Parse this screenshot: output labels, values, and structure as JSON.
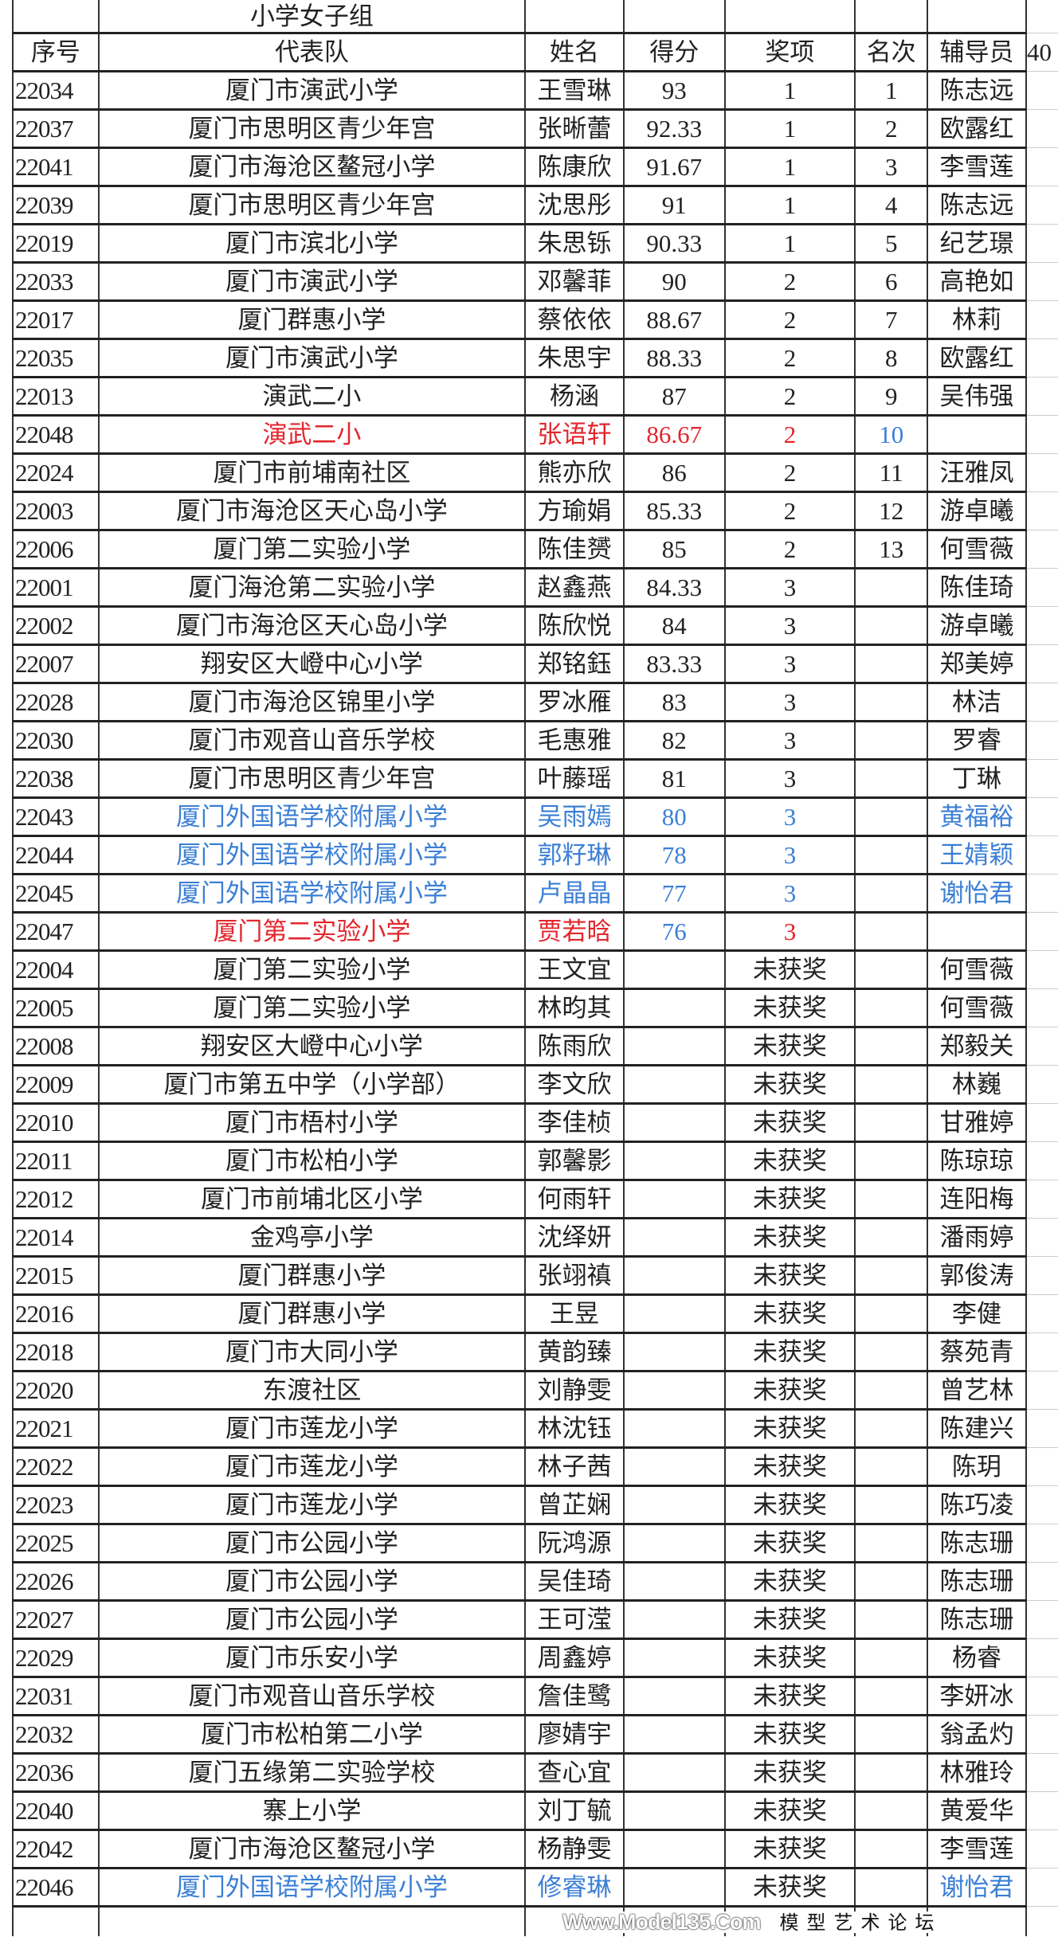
{
  "title": "小学女子组",
  "headers": [
    "序号",
    "代表队",
    "姓名",
    "得分",
    "奖项",
    "名次",
    "辅导员"
  ],
  "extra_header": "40",
  "colors": {
    "red": "#e2262d",
    "blue": "#3b7fd6"
  },
  "rows": [
    {
      "id": "22034",
      "team": "厦门市演武小学",
      "name": "王雪琳",
      "score": "93",
      "award": "1",
      "rank": "1",
      "coach": "陈志远"
    },
    {
      "id": "22037",
      "team": "厦门市思明区青少年宫",
      "name": "张晰蕾",
      "score": "92.33",
      "award": "1",
      "rank": "2",
      "coach": "欧露红"
    },
    {
      "id": "22041",
      "team": "厦门市海沧区鳌冠小学",
      "name": "陈康欣",
      "score": "91.67",
      "award": "1",
      "rank": "3",
      "coach": "李雪莲"
    },
    {
      "id": "22039",
      "team": "厦门市思明区青少年宫",
      "name": "沈思彤",
      "score": "91",
      "award": "1",
      "rank": "4",
      "coach": "陈志远"
    },
    {
      "id": "22019",
      "team": "厦门市滨北小学",
      "name": "朱思铄",
      "score": "90.33",
      "award": "1",
      "rank": "5",
      "coach": "纪艺璟"
    },
    {
      "id": "22033",
      "team": "厦门市演武小学",
      "name": "邓馨菲",
      "score": "90",
      "award": "2",
      "rank": "6",
      "coach": "高艳如"
    },
    {
      "id": "22017",
      "team": "厦门群惠小学",
      "name": "蔡依依",
      "score": "88.67",
      "award": "2",
      "rank": "7",
      "coach": "林莉"
    },
    {
      "id": "22035",
      "team": "厦门市演武小学",
      "name": "朱思宇",
      "score": "88.33",
      "award": "2",
      "rank": "8",
      "coach": "欧露红"
    },
    {
      "id": "22013",
      "team": "演武二小",
      "name": "杨涵",
      "score": "87",
      "award": "2",
      "rank": "9",
      "coach": "吴伟强"
    },
    {
      "id": "22048",
      "team": "演武二小",
      "name": "张语轩",
      "score": "86.67",
      "award": "2",
      "rank": "10",
      "coach": "",
      "color": {
        "team": "red",
        "name": "red",
        "score": "red",
        "award": "red",
        "rank": "blue"
      }
    },
    {
      "id": "22024",
      "team": "厦门市前埔南社区",
      "name": "熊亦欣",
      "score": "86",
      "award": "2",
      "rank": "11",
      "coach": "汪雅凤"
    },
    {
      "id": "22003",
      "team": "厦门市海沧区天心岛小学",
      "name": "方瑜娟",
      "score": "85.33",
      "award": "2",
      "rank": "12",
      "coach": "游卓曦"
    },
    {
      "id": "22006",
      "team": "厦门第二实验小学",
      "name": "陈佳赟",
      "score": "85",
      "award": "2",
      "rank": "13",
      "coach": "何雪薇"
    },
    {
      "id": "22001",
      "team": "厦门海沧第二实验小学",
      "name": "赵鑫燕",
      "score": "84.33",
      "award": "3",
      "rank": "",
      "coach": "陈佳琦"
    },
    {
      "id": "22002",
      "team": "厦门市海沧区天心岛小学",
      "name": "陈欣悦",
      "score": "84",
      "award": "3",
      "rank": "",
      "coach": "游卓曦"
    },
    {
      "id": "22007",
      "team": "翔安区大嶝中心小学",
      "name": "郑铭鈺",
      "score": "83.33",
      "award": "3",
      "rank": "",
      "coach": "郑美婷"
    },
    {
      "id": "22028",
      "team": "厦门市海沧区锦里小学",
      "name": "罗冰雁",
      "score": "83",
      "award": "3",
      "rank": "",
      "coach": "林洁"
    },
    {
      "id": "22030",
      "team": "厦门市观音山音乐学校",
      "name": "毛惠雅",
      "score": "82",
      "award": "3",
      "rank": "",
      "coach": "罗睿"
    },
    {
      "id": "22038",
      "team": "厦门市思明区青少年宫",
      "name": "叶藤瑶",
      "score": "81",
      "award": "3",
      "rank": "",
      "coach": "丁琳"
    },
    {
      "id": "22043",
      "team": "厦门外国语学校附属小学",
      "name": "吴雨嫣",
      "score": "80",
      "award": "3",
      "rank": "",
      "coach": "黄福裕",
      "color": {
        "team": "blue",
        "name": "blue",
        "score": "blue",
        "award": "blue",
        "coach": "blue"
      }
    },
    {
      "id": "22044",
      "team": "厦门外国语学校附属小学",
      "name": "郭籽琳",
      "score": "78",
      "award": "3",
      "rank": "",
      "coach": "王婧颖",
      "color": {
        "team": "blue",
        "name": "blue",
        "score": "blue",
        "award": "blue",
        "coach": "blue"
      }
    },
    {
      "id": "22045",
      "team": "厦门外国语学校附属小学",
      "name": "卢晶晶",
      "score": "77",
      "award": "3",
      "rank": "",
      "coach": "谢怡君",
      "color": {
        "team": "blue",
        "name": "blue",
        "score": "blue",
        "award": "blue",
        "coach": "blue"
      }
    },
    {
      "id": "22047",
      "team": "厦门第二实验小学",
      "name": "贾若晗",
      "score": "76",
      "award": "3",
      "rank": "",
      "coach": "",
      "color": {
        "team": "red",
        "name": "red",
        "score": "blue",
        "award": "red"
      }
    },
    {
      "id": "22004",
      "team": "厦门第二实验小学",
      "name": "王文宜",
      "score": "",
      "award": "未获奖",
      "rank": "",
      "coach": "何雪薇"
    },
    {
      "id": "22005",
      "team": "厦门第二实验小学",
      "name": "林昀其",
      "score": "",
      "award": "未获奖",
      "rank": "",
      "coach": "何雪薇"
    },
    {
      "id": "22008",
      "team": "翔安区大嶝中心小学",
      "name": "陈雨欣",
      "score": "",
      "award": "未获奖",
      "rank": "",
      "coach": "郑毅关"
    },
    {
      "id": "22009",
      "team": "厦门市第五中学（小学部）",
      "name": "李文欣",
      "score": "",
      "award": "未获奖",
      "rank": "",
      "coach": "林巍"
    },
    {
      "id": "22010",
      "team": "厦门市梧村小学",
      "name": "李佳桢",
      "score": "",
      "award": "未获奖",
      "rank": "",
      "coach": "甘雅婷"
    },
    {
      "id": "22011",
      "team": "厦门市松柏小学",
      "name": "郭馨影",
      "score": "",
      "award": "未获奖",
      "rank": "",
      "coach": "陈琼琼"
    },
    {
      "id": "22012",
      "team": "厦门市前埔北区小学",
      "name": "何雨轩",
      "score": "",
      "award": "未获奖",
      "rank": "",
      "coach": "连阳梅"
    },
    {
      "id": "22014",
      "team": "金鸡亭小学",
      "name": "沈绎妍",
      "score": "",
      "award": "未获奖",
      "rank": "",
      "coach": "潘雨婷"
    },
    {
      "id": "22015",
      "team": "厦门群惠小学",
      "name": "张翊禛",
      "score": "",
      "award": "未获奖",
      "rank": "",
      "coach": "郭俊涛"
    },
    {
      "id": "22016",
      "team": "厦门群惠小学",
      "name": "王昱",
      "score": "",
      "award": "未获奖",
      "rank": "",
      "coach": "李健"
    },
    {
      "id": "22018",
      "team": "厦门市大同小学",
      "name": "黄韵臻",
      "score": "",
      "award": "未获奖",
      "rank": "",
      "coach": "蔡苑青"
    },
    {
      "id": "22020",
      "team": "东渡社区",
      "name": "刘静雯",
      "score": "",
      "award": "未获奖",
      "rank": "",
      "coach": "曾艺林"
    },
    {
      "id": "22021",
      "team": "厦门市莲龙小学",
      "name": "林沈钰",
      "score": "",
      "award": "未获奖",
      "rank": "",
      "coach": "陈建兴"
    },
    {
      "id": "22022",
      "team": "厦门市莲龙小学",
      "name": "林子茜",
      "score": "",
      "award": "未获奖",
      "rank": "",
      "coach": "陈玥"
    },
    {
      "id": "22023",
      "team": "厦门市莲龙小学",
      "name": "曾芷娴",
      "score": "",
      "award": "未获奖",
      "rank": "",
      "coach": "陈巧凌"
    },
    {
      "id": "22025",
      "team": "厦门市公园小学",
      "name": "阮鸿源",
      "score": "",
      "award": "未获奖",
      "rank": "",
      "coach": "陈志珊"
    },
    {
      "id": "22026",
      "team": "厦门市公园小学",
      "name": "吴佳琦",
      "score": "",
      "award": "未获奖",
      "rank": "",
      "coach": "陈志珊"
    },
    {
      "id": "22027",
      "team": "厦门市公园小学",
      "name": "王可滢",
      "score": "",
      "award": "未获奖",
      "rank": "",
      "coach": "陈志珊"
    },
    {
      "id": "22029",
      "team": "厦门市乐安小学",
      "name": "周鑫婷",
      "score": "",
      "award": "未获奖",
      "rank": "",
      "coach": "杨睿"
    },
    {
      "id": "22031",
      "team": "厦门市观音山音乐学校",
      "name": "詹佳鹭",
      "score": "",
      "award": "未获奖",
      "rank": "",
      "coach": "李妍冰"
    },
    {
      "id": "22032",
      "team": "厦门市松柏第二小学",
      "name": "廖婧宇",
      "score": "",
      "award": "未获奖",
      "rank": "",
      "coach": "翁孟灼"
    },
    {
      "id": "22036",
      "team": "厦门五缘第二实验学校",
      "name": "查心宜",
      "score": "",
      "award": "未获奖",
      "rank": "",
      "coach": "林雅玲"
    },
    {
      "id": "22040",
      "team": "寨上小学",
      "name": "刘丁毓",
      "score": "",
      "award": "未获奖",
      "rank": "",
      "coach": "黄爱华"
    },
    {
      "id": "22042",
      "team": "厦门市海沧区鳌冠小学",
      "name": "杨静雯",
      "score": "",
      "award": "未获奖",
      "rank": "",
      "coach": "李雪莲"
    },
    {
      "id": "22046",
      "team": "厦门外国语学校附属小学",
      "name": "修睿琳",
      "score": "",
      "award": "未获奖",
      "rank": "",
      "coach": "谢怡君",
      "color": {
        "team": "blue",
        "name": "blue",
        "coach": "blue"
      }
    }
  ],
  "watermark": {
    "line1": "Www.Model135.Com",
    "line2": "模型艺术论坛"
  }
}
